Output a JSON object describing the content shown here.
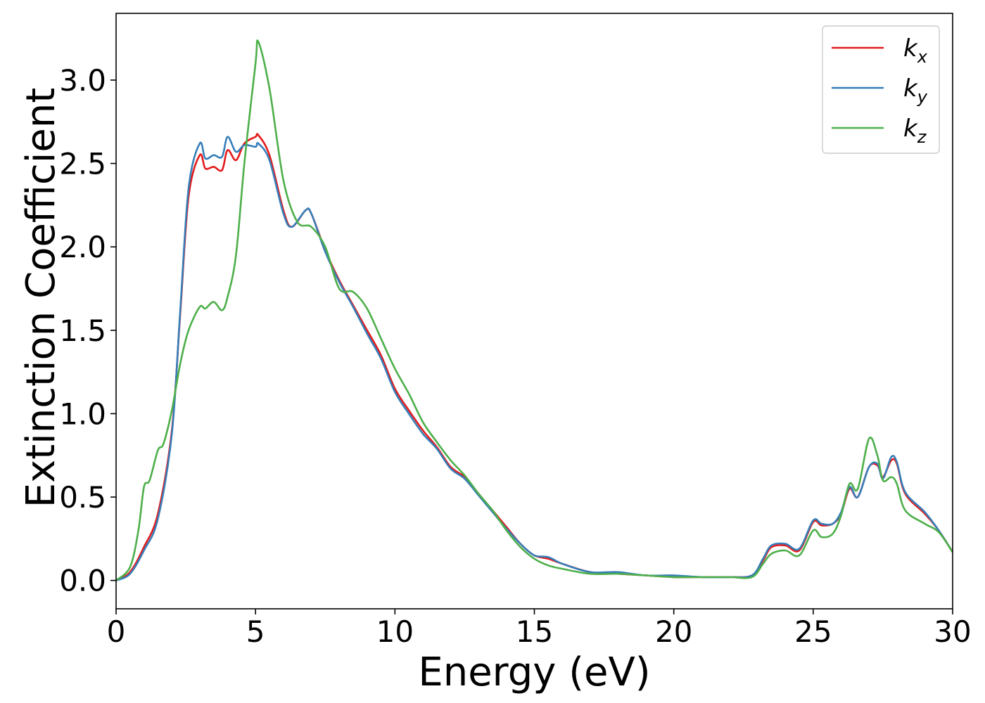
{
  "chart_data": {
    "type": "line",
    "title": "",
    "xlabel": "Energy (eV)",
    "ylabel": "Extinction Coefficient",
    "xlim": [
      0,
      30
    ],
    "ylim": [
      -0.17,
      3.4
    ],
    "xticks": [
      0,
      5,
      10,
      15,
      20,
      25,
      30
    ],
    "xtick_labels": [
      "0",
      "5",
      "10",
      "15",
      "20",
      "25",
      "30"
    ],
    "yticks": [
      0.0,
      0.5,
      1.0,
      1.5,
      2.0,
      2.5,
      3.0
    ],
    "ytick_labels": [
      "0.0",
      "0.5",
      "1.0",
      "1.5",
      "2.0",
      "2.5",
      "3.0"
    ],
    "grid": false,
    "legend_position": "top-right",
    "series": [
      {
        "name": "k_x",
        "label_main": "k",
        "label_sub": "x",
        "color": "#e41a1c",
        "x": [
          0,
          0.5,
          1,
          1.5,
          2,
          2.3,
          2.6,
          3,
          3.2,
          3.5,
          3.8,
          4,
          4.3,
          4.6,
          5,
          5.1,
          5.5,
          6,
          6.3,
          6.8,
          7,
          7.5,
          8,
          8.5,
          9,
          9.5,
          10,
          10.5,
          11,
          11.5,
          12,
          12.5,
          13,
          13.5,
          14,
          14.5,
          15,
          15.5,
          16,
          17,
          18,
          19,
          20,
          21,
          22,
          22.8,
          23.2,
          23.5,
          24,
          24.5,
          25,
          25.3,
          25.7,
          26,
          26.3,
          26.6,
          27,
          27.3,
          27.5,
          27.8,
          28,
          28.3,
          29,
          29.5,
          30
        ],
        "y": [
          0,
          0.05,
          0.2,
          0.4,
          0.9,
          1.6,
          2.3,
          2.55,
          2.47,
          2.48,
          2.46,
          2.58,
          2.52,
          2.62,
          2.66,
          2.67,
          2.55,
          2.22,
          2.12,
          2.22,
          2.2,
          1.98,
          1.8,
          1.65,
          1.5,
          1.35,
          1.15,
          1.02,
          0.9,
          0.8,
          0.68,
          0.62,
          0.52,
          0.42,
          0.32,
          0.22,
          0.15,
          0.13,
          0.1,
          0.05,
          0.04,
          0.03,
          0.02,
          0.02,
          0.02,
          0.03,
          0.12,
          0.2,
          0.21,
          0.18,
          0.35,
          0.33,
          0.34,
          0.4,
          0.55,
          0.5,
          0.68,
          0.69,
          0.62,
          0.72,
          0.7,
          0.52,
          0.4,
          0.3,
          0.17
        ]
      },
      {
        "name": "k_y",
        "label_main": "k",
        "label_sub": "y",
        "color": "#377eb8",
        "x": [
          0,
          0.5,
          1,
          1.5,
          2,
          2.3,
          2.6,
          3,
          3.2,
          3.5,
          3.8,
          4,
          4.3,
          4.6,
          5,
          5.1,
          5.5,
          6,
          6.3,
          6.8,
          7,
          7.5,
          8,
          8.5,
          9,
          9.5,
          10,
          10.5,
          11,
          11.5,
          12,
          12.5,
          13,
          13.5,
          14,
          14.5,
          15,
          15.5,
          16,
          17,
          18,
          19,
          20,
          21,
          22,
          22.8,
          23.2,
          23.5,
          24,
          24.5,
          25,
          25.3,
          25.7,
          26,
          26.3,
          26.6,
          27,
          27.3,
          27.5,
          27.8,
          28,
          28.3,
          29,
          29.5,
          30
        ],
        "y": [
          0,
          0.04,
          0.18,
          0.37,
          0.88,
          1.62,
          2.35,
          2.62,
          2.53,
          2.55,
          2.54,
          2.66,
          2.57,
          2.61,
          2.6,
          2.62,
          2.52,
          2.2,
          2.12,
          2.22,
          2.2,
          1.97,
          1.79,
          1.64,
          1.48,
          1.33,
          1.13,
          1.0,
          0.88,
          0.79,
          0.67,
          0.61,
          0.51,
          0.41,
          0.31,
          0.22,
          0.15,
          0.14,
          0.1,
          0.05,
          0.05,
          0.03,
          0.03,
          0.02,
          0.02,
          0.03,
          0.13,
          0.21,
          0.22,
          0.19,
          0.36,
          0.34,
          0.34,
          0.41,
          0.56,
          0.5,
          0.68,
          0.7,
          0.61,
          0.74,
          0.71,
          0.53,
          0.41,
          0.3,
          0.17
        ]
      },
      {
        "name": "k_z",
        "label_main": "k",
        "label_sub": "z",
        "color": "#4daf4a",
        "x": [
          0,
          0.5,
          0.8,
          1,
          1.2,
          1.5,
          1.7,
          2,
          2.3,
          2.6,
          3,
          3.2,
          3.5,
          3.8,
          4,
          4.3,
          4.6,
          5,
          5.1,
          5.5,
          6,
          6.5,
          7,
          7.5,
          8,
          8.5,
          9,
          9.5,
          10,
          10.5,
          11,
          11.5,
          12,
          12.5,
          13,
          13.5,
          14,
          14.5,
          15,
          15.5,
          16,
          17,
          18,
          19,
          20,
          21,
          22,
          22.8,
          23.2,
          23.5,
          24,
          24.5,
          25,
          25.3,
          25.7,
          26,
          26.3,
          26.6,
          27,
          27.3,
          27.5,
          27.8,
          28,
          28.3,
          29,
          29.5,
          30
        ],
        "y": [
          0,
          0.08,
          0.3,
          0.56,
          0.6,
          0.78,
          0.82,
          1.02,
          1.3,
          1.5,
          1.64,
          1.63,
          1.67,
          1.62,
          1.7,
          1.95,
          2.5,
          3.1,
          3.23,
          2.95,
          2.4,
          2.15,
          2.12,
          2.0,
          1.75,
          1.73,
          1.63,
          1.45,
          1.27,
          1.12,
          0.95,
          0.83,
          0.72,
          0.63,
          0.52,
          0.42,
          0.3,
          0.2,
          0.13,
          0.09,
          0.07,
          0.04,
          0.04,
          0.03,
          0.02,
          0.02,
          0.02,
          0.02,
          0.1,
          0.16,
          0.18,
          0.15,
          0.3,
          0.26,
          0.28,
          0.39,
          0.58,
          0.55,
          0.85,
          0.75,
          0.6,
          0.62,
          0.58,
          0.42,
          0.34,
          0.29,
          0.17
        ]
      }
    ]
  }
}
